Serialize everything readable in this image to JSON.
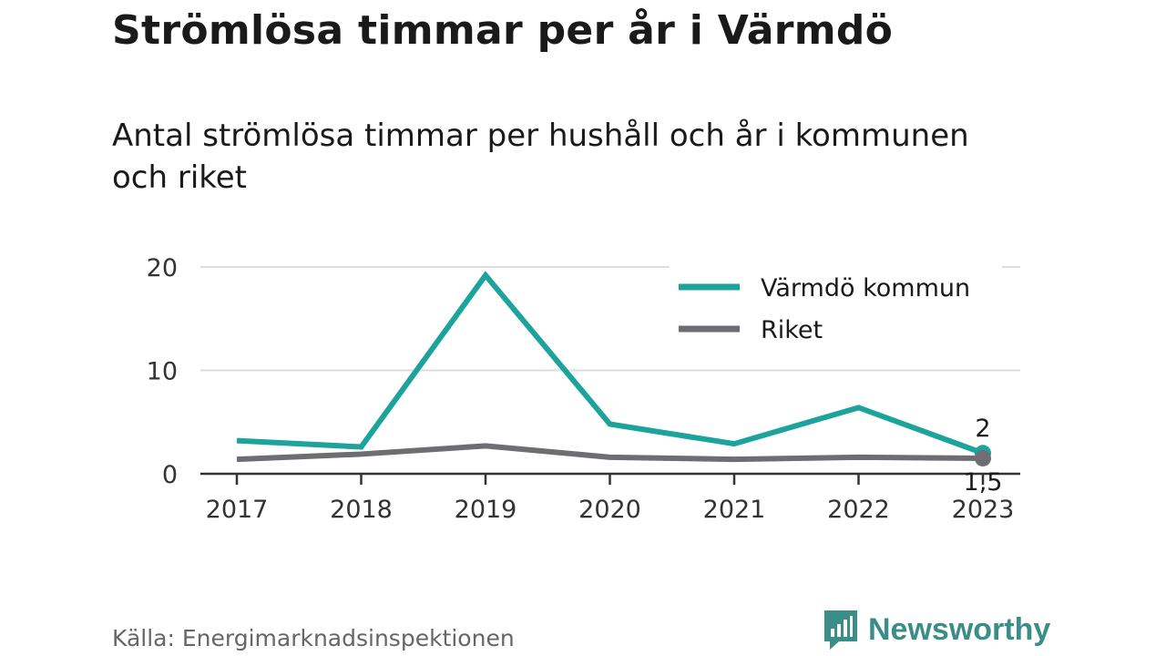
{
  "header": {
    "title": "Strömlösa timmar per år i Värmdö",
    "subtitle": "Antal strömlösa timmar per hushåll och år i kommunen och riket"
  },
  "footer": {
    "source": "Källa: Energimarknadsinspektionen",
    "brand": "Newsworthy"
  },
  "colors": {
    "varmdo": "#1ba39c",
    "riket": "#6d6d73",
    "grid": "#dddddd",
    "axis": "#333333"
  },
  "chart_data": {
    "type": "line",
    "x": [
      "2017",
      "2018",
      "2019",
      "2020",
      "2021",
      "2022",
      "2023"
    ],
    "series": [
      {
        "name": "Värmdö kommun",
        "color": "#1ba39c",
        "values": [
          3.2,
          2.6,
          19.2,
          4.8,
          2.9,
          6.4,
          2.0
        ],
        "end_label": "2"
      },
      {
        "name": "Riket",
        "color": "#6d6d73",
        "values": [
          1.4,
          1.9,
          2.7,
          1.6,
          1.4,
          1.6,
          1.5
        ],
        "end_label": "1,5"
      }
    ],
    "yticks": [
      0,
      10,
      20
    ],
    "ylim": [
      0,
      20
    ],
    "legend_position": "top-right",
    "grid": true
  }
}
